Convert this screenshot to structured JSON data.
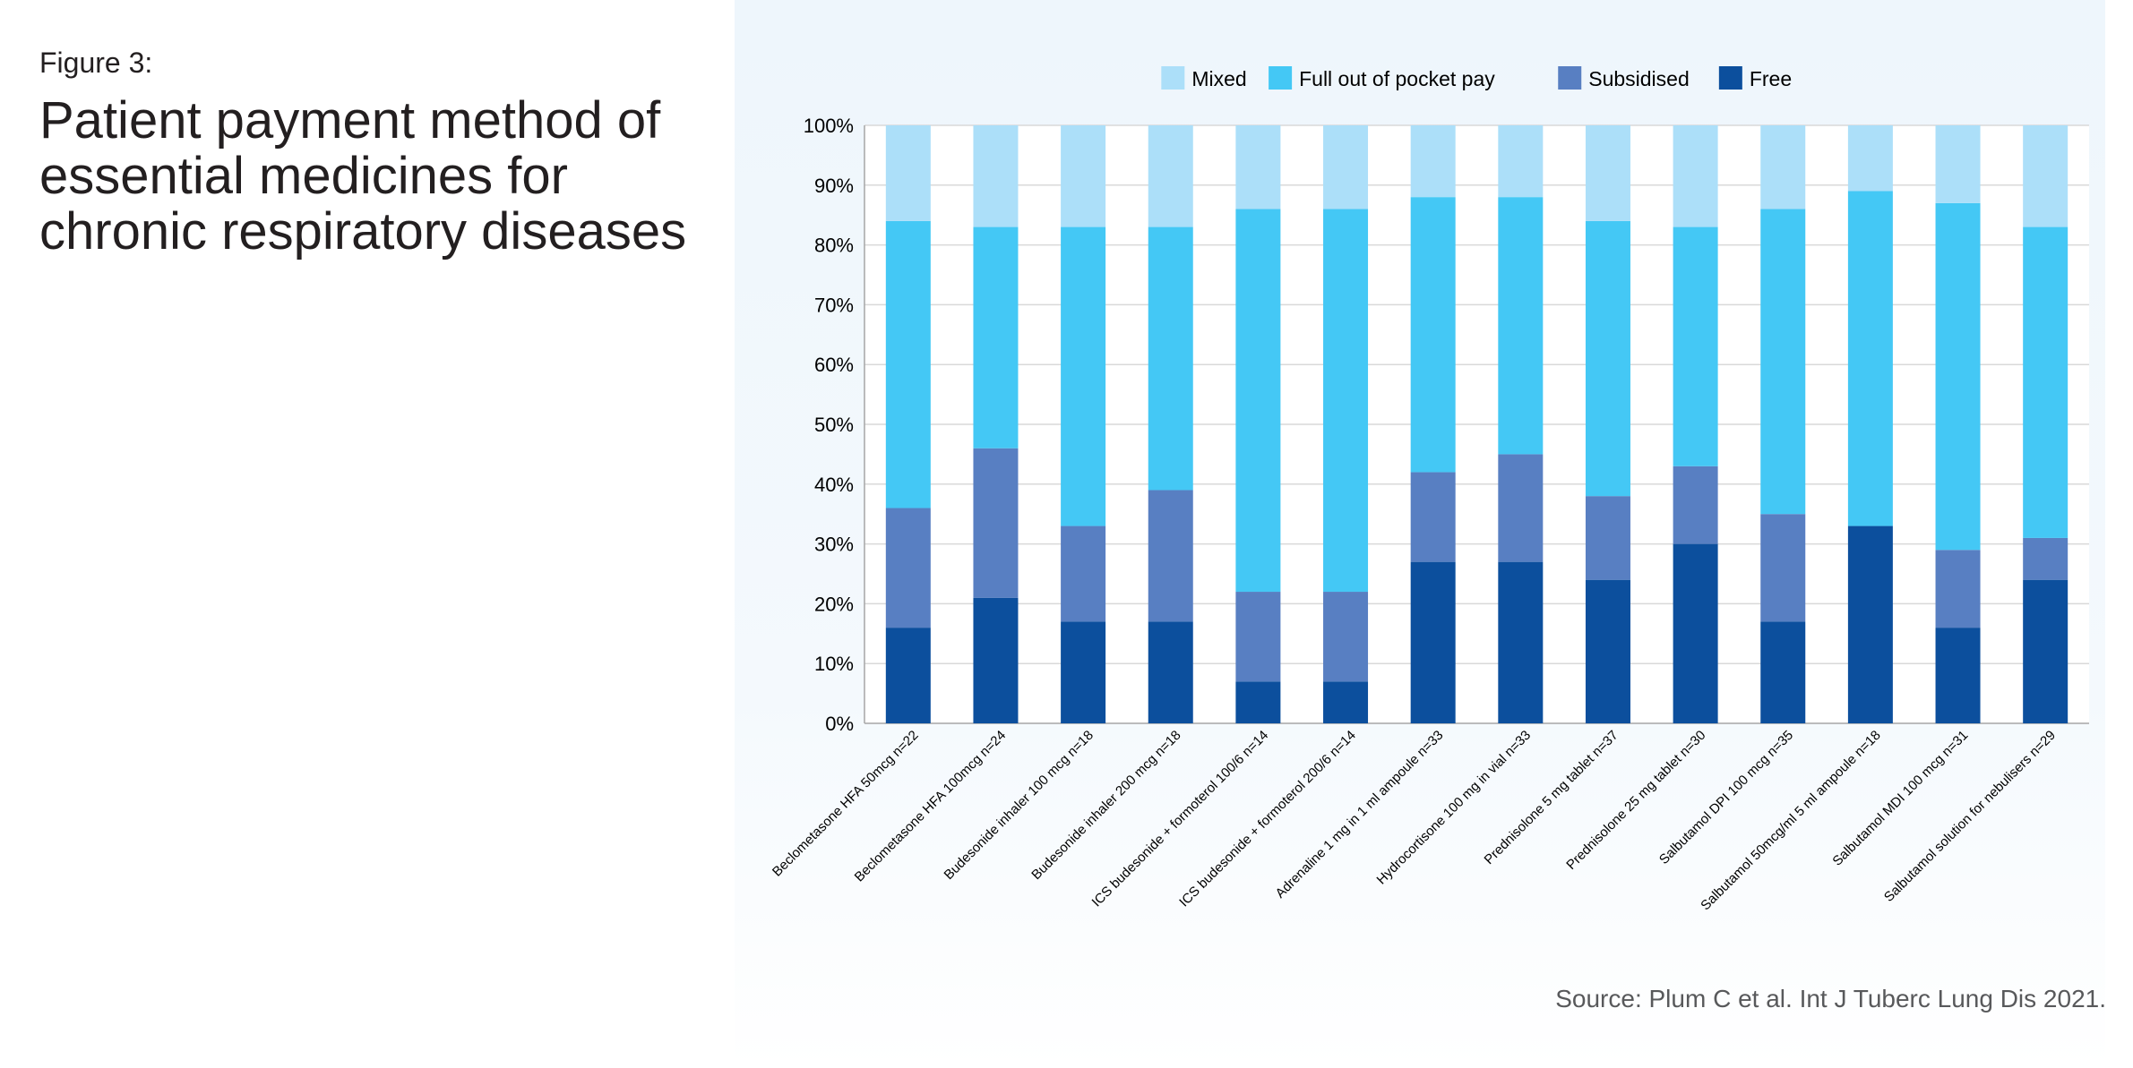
{
  "figure_label": "Figure 3:",
  "figure_title": "Patient payment method of essential medicines for chronic respiratory diseases",
  "source": "Source: Plum C et al. Int J Tuberc Lung Dis 2021.",
  "colors": {
    "Mixed": "#acdff9",
    "Full out of pocket pay": "#44c8f5",
    "Subsidised": "#587fc2",
    "Free": "#0c4f9d"
  },
  "chart_data": {
    "type": "bar",
    "stacked": true,
    "percent": true,
    "title": "",
    "xlabel": "",
    "ylabel": "",
    "ylim": [
      0,
      100
    ],
    "yticks": [
      "0%",
      "10%",
      "20%",
      "30%",
      "40%",
      "50%",
      "60%",
      "70%",
      "80%",
      "90%",
      "100%"
    ],
    "legend": [
      "Mixed",
      "Full out of pocket pay",
      "Subsidised",
      "Free"
    ],
    "legend_position": "top",
    "grid": true,
    "categories": [
      "Beclometasone HFA 50mcg n=22",
      "Beclometasone HFA 100mcg n=24",
      "Budesonide inhaler 100 mcg n=18",
      "Budesonide inhaler 200 mcg n=18",
      "ICS budesonide + formoterol 100/6 n=14",
      "ICS budesonide + formoterol 200/6 n=14",
      "Adrenaline 1 mg in 1 ml ampoule n=33",
      "Hydrocortisone 100 mg in vial n=33",
      "Prednisolone 5 mg tablet n=37",
      "Prednisolone 25 mg tablet n=30",
      "Salbutamol DPI 100 mcg n=35",
      "Salbutamol 50mcg/ml 5 ml ampoule n=18",
      "Salbutamol MDI 100 mcg n=31",
      "Salbutamol solution for nebulisers n=29"
    ],
    "series": [
      {
        "name": "Free",
        "values": [
          16,
          21,
          17,
          17,
          7,
          7,
          27,
          27,
          24,
          30,
          17,
          33,
          16,
          24
        ]
      },
      {
        "name": "Subsidised",
        "values": [
          20,
          25,
          16,
          22,
          15,
          15,
          15,
          18,
          14,
          13,
          18,
          0,
          13,
          7
        ]
      },
      {
        "name": "Full out of pocket pay",
        "values": [
          48,
          37,
          50,
          44,
          64,
          64,
          46,
          43,
          46,
          40,
          51,
          56,
          58,
          52
        ]
      },
      {
        "name": "Mixed",
        "values": [
          16,
          17,
          17,
          17,
          14,
          14,
          12,
          12,
          16,
          17,
          14,
          11,
          13,
          17
        ]
      }
    ]
  }
}
